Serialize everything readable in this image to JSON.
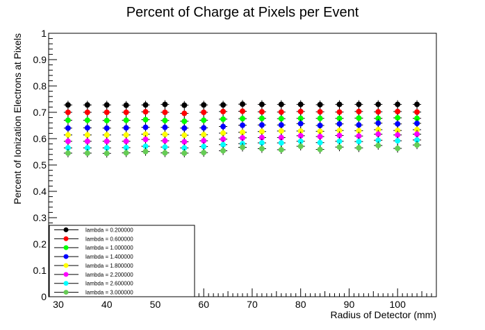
{
  "chart_data": {
    "type": "scatter",
    "title": "Percent of Charge at Pixels per Event",
    "xlabel": "Radius of Detector (mm)",
    "ylabel": "Percent of Ionization Electrons at Pixels",
    "xlim": [
      28,
      108
    ],
    "ylim": [
      0,
      1
    ],
    "xticks": [
      30,
      40,
      50,
      60,
      70,
      80,
      90,
      100
    ],
    "yticks": [
      0,
      0.1,
      0.2,
      0.3,
      0.4,
      0.5,
      0.6,
      0.7,
      0.8,
      0.9,
      1
    ],
    "x": [
      32,
      36,
      40,
      44,
      48,
      52,
      56,
      60,
      64,
      68,
      72,
      76,
      80,
      84,
      88,
      92,
      96,
      100,
      104
    ],
    "error_bars": true,
    "grid": false,
    "legend_position": "bottom-left",
    "series": [
      {
        "name": "lambda = 0.200000",
        "color": "#000000",
        "values": [
          0.728,
          0.728,
          0.728,
          0.727,
          0.728,
          0.73,
          0.727,
          0.728,
          0.728,
          0.731,
          0.73,
          0.73,
          0.73,
          0.729,
          0.73,
          0.73,
          0.73,
          0.73,
          0.73
        ]
      },
      {
        "name": "lambda = 0.600000",
        "color": "#ff0000",
        "values": [
          0.7,
          0.7,
          0.7,
          0.7,
          0.702,
          0.7,
          0.696,
          0.7,
          0.703,
          0.704,
          0.702,
          0.701,
          0.703,
          0.702,
          0.701,
          0.703,
          0.702,
          0.703,
          0.701
        ]
      },
      {
        "name": "lambda = 1.000000",
        "color": "#00ff00",
        "values": [
          0.67,
          0.67,
          0.669,
          0.67,
          0.672,
          0.669,
          0.666,
          0.67,
          0.674,
          0.676,
          0.677,
          0.676,
          0.677,
          0.677,
          0.677,
          0.678,
          0.677,
          0.679,
          0.677
        ]
      },
      {
        "name": "lambda = 1.400000",
        "color": "#0000ff",
        "values": [
          0.64,
          0.641,
          0.64,
          0.641,
          0.643,
          0.643,
          0.64,
          0.641,
          0.646,
          0.651,
          0.652,
          0.652,
          0.657,
          0.65,
          0.656,
          0.652,
          0.659,
          0.656,
          0.658
        ]
      },
      {
        "name": "lambda = 1.800000",
        "color": "#ffff00",
        "values": [
          0.614,
          0.614,
          0.614,
          0.614,
          0.617,
          0.616,
          0.613,
          0.615,
          0.621,
          0.624,
          0.627,
          0.629,
          0.629,
          0.628,
          0.631,
          0.63,
          0.634,
          0.631,
          0.634
        ]
      },
      {
        "name": "lambda = 2.200000",
        "color": "#ff00ff",
        "values": [
          0.59,
          0.59,
          0.59,
          0.59,
          0.597,
          0.592,
          0.588,
          0.592,
          0.598,
          0.603,
          0.604,
          0.604,
          0.611,
          0.608,
          0.612,
          0.61,
          0.617,
          0.614,
          0.617
        ]
      },
      {
        "name": "lambda = 2.600000",
        "color": "#00ffff",
        "values": [
          0.565,
          0.565,
          0.565,
          0.566,
          0.571,
          0.568,
          0.565,
          0.57,
          0.577,
          0.581,
          0.584,
          0.584,
          0.59,
          0.585,
          0.59,
          0.589,
          0.594,
          0.592,
          0.595
        ]
      },
      {
        "name": "lambda = 3.000000",
        "color": "#66cc55",
        "values": [
          0.545,
          0.545,
          0.544,
          0.546,
          0.551,
          0.546,
          0.545,
          0.547,
          0.554,
          0.567,
          0.562,
          0.558,
          0.571,
          0.559,
          0.568,
          0.565,
          0.574,
          0.563,
          0.576
        ]
      }
    ]
  }
}
